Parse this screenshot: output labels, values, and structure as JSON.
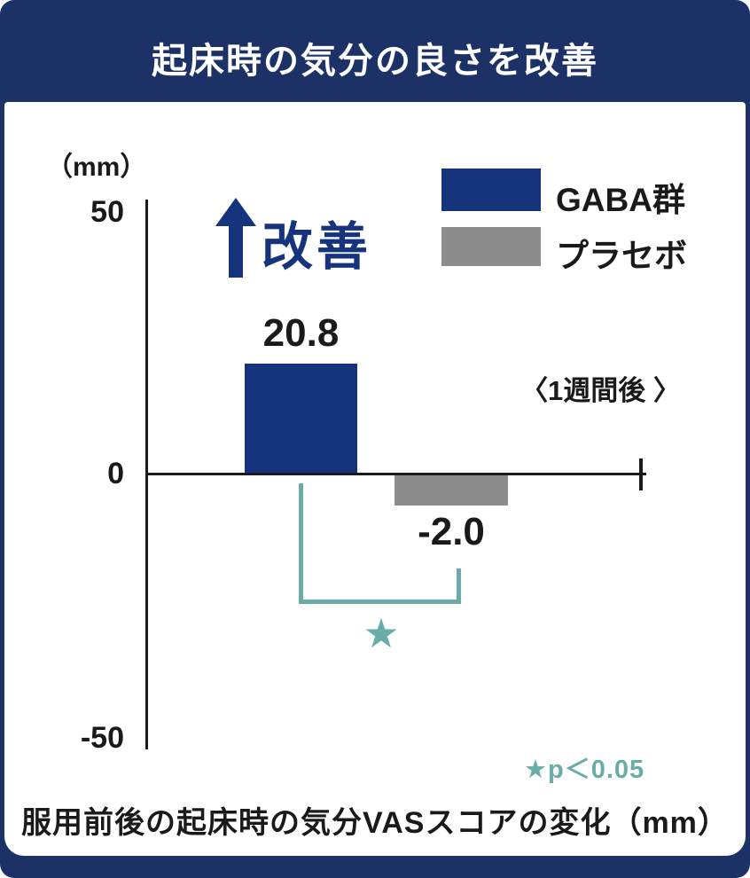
{
  "header": {
    "title": "起床時の気分の良さを改善"
  },
  "colors": {
    "frame_navy": "#1c3166",
    "bar_blue": "#16337e",
    "bar_gray": "#8c8c8c",
    "teal": "#6aaca7",
    "axis_black": "#1a1a1a"
  },
  "chart_data": {
    "type": "bar",
    "title": "起床時の気分の良さを改善",
    "unit_label": "（mm）",
    "categories": [
      "GABA群",
      "プラセボ"
    ],
    "values": [
      20.8,
      -2.0
    ],
    "value_labels": [
      "20.8",
      "-2.0"
    ],
    "series_colors": [
      "#16337e",
      "#8c8c8c"
    ],
    "ylim": [
      -50,
      50
    ],
    "ytick_labels": [
      "50",
      "0",
      "-50"
    ],
    "grid": false,
    "legend_position": "top-right",
    "legend": [
      {
        "label": "GABA群",
        "color": "#16337e"
      },
      {
        "label": "プラセボ",
        "color": "#8c8c8c"
      }
    ],
    "improvement_label": "改善",
    "timepoint_label": "〈1週間後 〉",
    "significance_star": "★",
    "significance_note": "★p＜0.05",
    "caption": "服用前後の起床時の気分VASスコアの変化（mm）"
  }
}
